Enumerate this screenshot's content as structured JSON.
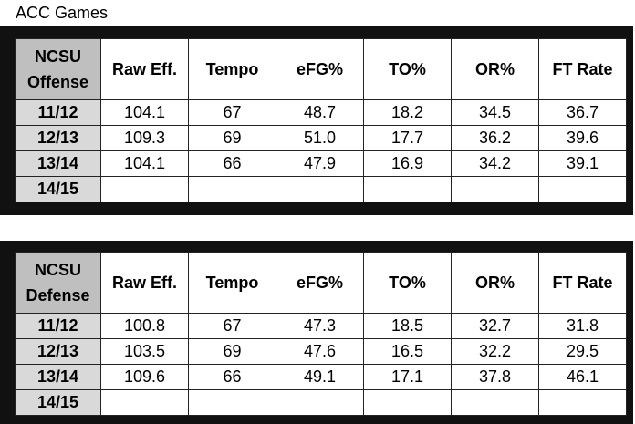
{
  "title": "ACC Games",
  "offense": {
    "corner": [
      "NCSU",
      "Offense"
    ],
    "columns": [
      "Raw Eff.",
      "Tempo",
      "eFG%",
      "TO%",
      "OR%",
      "FT Rate"
    ],
    "rows": [
      {
        "season": "11/12",
        "values": [
          "104.1",
          "67",
          "48.7",
          "18.2",
          "34.5",
          "36.7"
        ]
      },
      {
        "season": "12/13",
        "values": [
          "109.3",
          "69",
          "51.0",
          "17.7",
          "36.2",
          "39.6"
        ]
      },
      {
        "season": "13/14",
        "values": [
          "104.1",
          "66",
          "47.9",
          "16.9",
          "34.2",
          "39.1"
        ]
      },
      {
        "season": "14/15",
        "values": [
          "",
          "",
          "",
          "",
          "",
          ""
        ]
      }
    ]
  },
  "defense": {
    "corner": [
      "NCSU",
      "Defense"
    ],
    "columns": [
      "Raw Eff.",
      "Tempo",
      "eFG%",
      "TO%",
      "OR%",
      "FT Rate"
    ],
    "rows": [
      {
        "season": "11/12",
        "values": [
          "100.8",
          "67",
          "47.3",
          "18.5",
          "32.7",
          "31.8"
        ]
      },
      {
        "season": "12/13",
        "values": [
          "103.5",
          "69",
          "47.6",
          "16.5",
          "32.2",
          "29.5"
        ]
      },
      {
        "season": "13/14",
        "values": [
          "109.6",
          "66",
          "49.1",
          "17.1",
          "37.8",
          "46.1"
        ]
      },
      {
        "season": "14/15",
        "values": [
          "",
          "",
          "",
          "",
          "",
          ""
        ]
      }
    ]
  }
}
